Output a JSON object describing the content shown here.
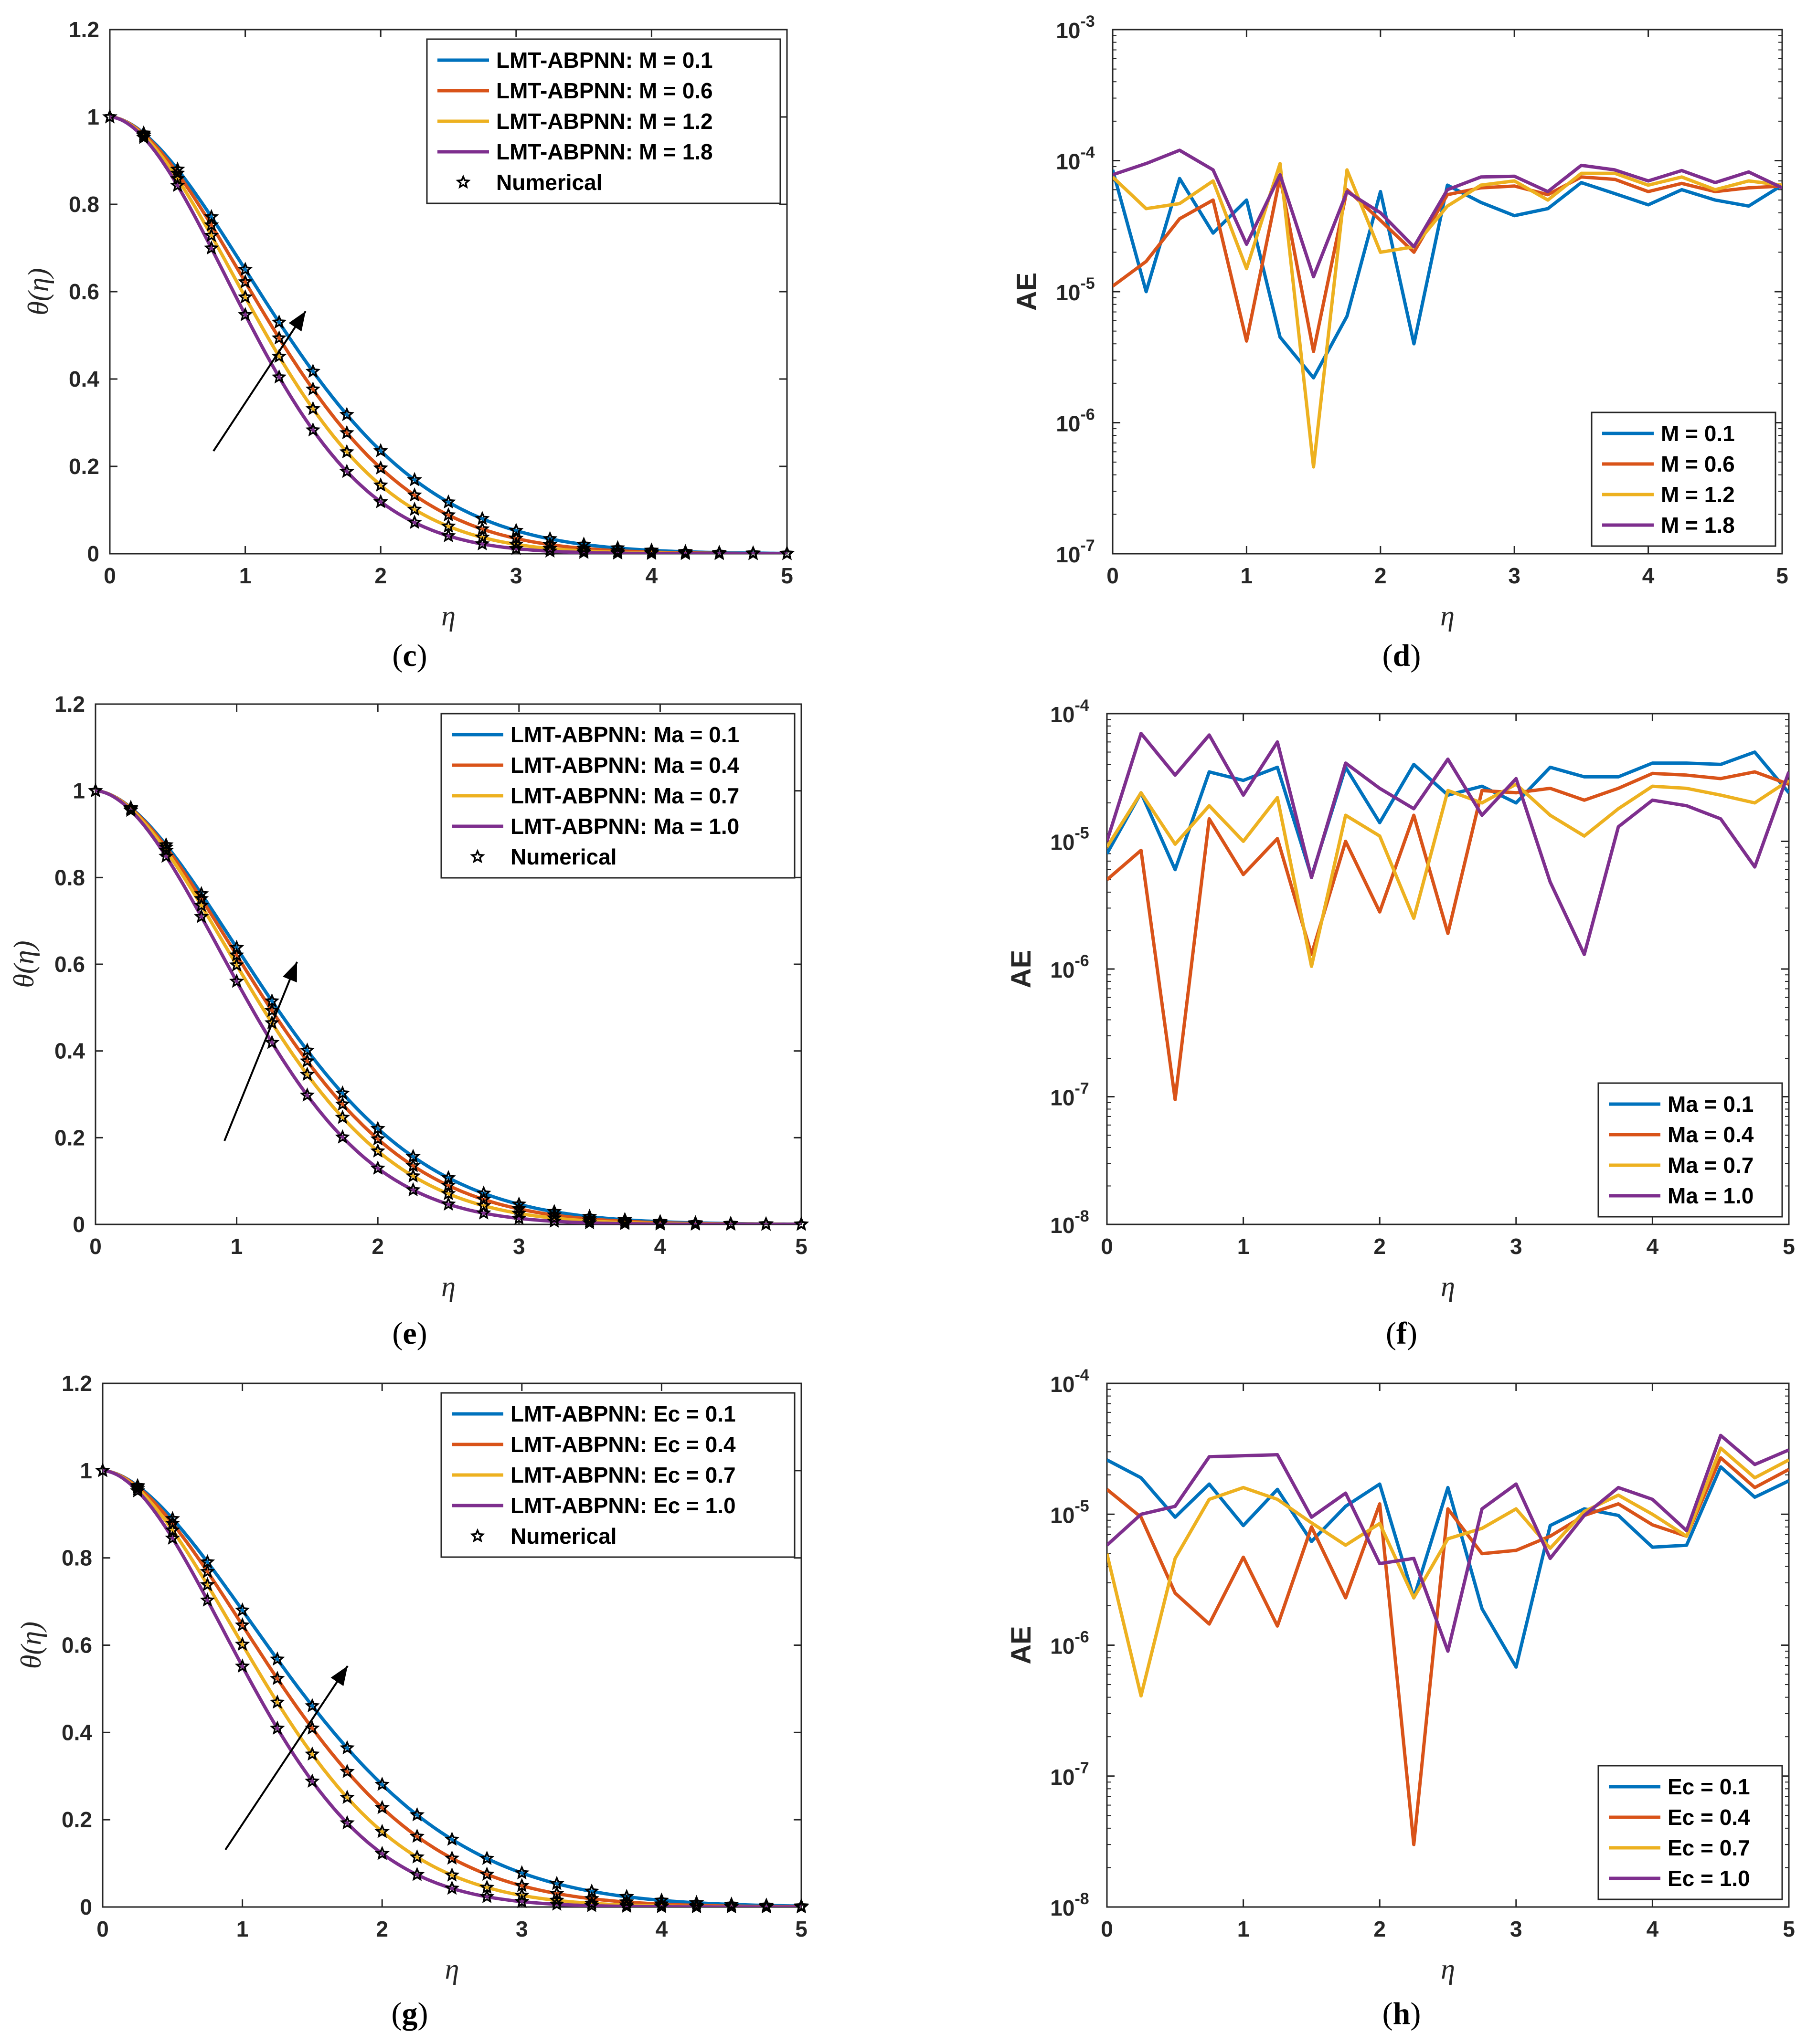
{
  "colors": {
    "blue": "#0072BD",
    "orange": "#D95319",
    "yellow": "#EDB120",
    "purple": "#7E2F8E",
    "axis": "#262626"
  },
  "chart_data": [
    {
      "type": "line",
      "caption": "c",
      "ylabel": "θ(η)",
      "xlabel": "η",
      "ylim": [
        0,
        1.2
      ],
      "xlim": [
        0,
        5
      ],
      "yscale": "linear",
      "legend_location": "top-right",
      "arrow": true,
      "series": [
        {
          "name": "LMT-ABPNN: M = 0.1",
          "color_key": "blue",
          "k": 1.62,
          "n": 1.75
        },
        {
          "name": "LMT-ABPNN: M = 0.6",
          "color_key": "orange",
          "k": 1.52,
          "n": 1.78
        },
        {
          "name": "LMT-ABPNN: M = 1.2",
          "color_key": "yellow",
          "k": 1.42,
          "n": 1.8
        },
        {
          "name": "LMT-ABPNN: M = 1.8",
          "color_key": "purple",
          "k": 1.32,
          "n": 1.82
        }
      ],
      "marker_label": "Numerical"
    },
    {
      "type": "line",
      "caption": "d",
      "ylabel": "AE",
      "xlabel": "η",
      "yscale": "log",
      "ylim_exp": [
        -7,
        -3
      ],
      "xlim": [
        0,
        5
      ],
      "legend_location": "bottom-right",
      "x": [
        0,
        0.25,
        0.5,
        0.75,
        1,
        1.25,
        1.5,
        1.75,
        2,
        2.25,
        2.5,
        2.75,
        3,
        3.25,
        3.5,
        3.75,
        4,
        4.25,
        4.5,
        4.75,
        5
      ],
      "series": [
        {
          "name": "M = 0.1",
          "color_key": "blue",
          "values": [
            8.5e-05,
            1e-05,
            7.3e-05,
            2.8e-05,
            5e-05,
            4.5e-06,
            2.2e-06,
            6.5e-06,
            5.8e-05,
            4e-06,
            6.5e-05,
            4.8e-05,
            3.8e-05,
            4.3e-05,
            6.8e-05,
            5.6e-05,
            4.6e-05,
            6e-05,
            5e-05,
            4.5e-05,
            6.5e-05
          ]
        },
        {
          "name": "M = 0.6",
          "color_key": "orange",
          "values": [
            1.1e-05,
            1.7e-05,
            3.6e-05,
            5e-05,
            4.2e-06,
            7.5e-05,
            3.5e-06,
            6e-05,
            3.5e-05,
            2e-05,
            5.5e-05,
            6.2e-05,
            6.4e-05,
            5.5e-05,
            7.5e-05,
            7.2e-05,
            5.8e-05,
            6.7e-05,
            5.8e-05,
            6.2e-05,
            6.4e-05
          ]
        },
        {
          "name": "M = 1.2",
          "color_key": "yellow",
          "values": [
            7.5e-05,
            4.3e-05,
            4.7e-05,
            7e-05,
            1.5e-05,
            9.5e-05,
            4.6e-07,
            8.5e-05,
            2e-05,
            2.2e-05,
            4.5e-05,
            6.5e-05,
            7e-05,
            5e-05,
            8e-05,
            8e-05,
            6.5e-05,
            7.5e-05,
            6e-05,
            7e-05,
            6.5e-05
          ]
        },
        {
          "name": "M = 1.8",
          "color_key": "purple",
          "values": [
            7.8e-05,
            9.5e-05,
            0.00012,
            8.5e-05,
            2.3e-05,
            7.8e-05,
            1.3e-05,
            5.8e-05,
            4e-05,
            2.2e-05,
            6e-05,
            7.5e-05,
            7.6e-05,
            5.8e-05,
            9.2e-05,
            8.5e-05,
            7e-05,
            8.4e-05,
            6.8e-05,
            8.2e-05,
            6.2e-05
          ]
        }
      ]
    },
    {
      "type": "line",
      "caption": "e",
      "ylabel": "θ(η)",
      "xlabel": "η",
      "ylim": [
        0,
        1.2
      ],
      "xlim": [
        0,
        5
      ],
      "yscale": "linear",
      "legend_location": "top-right",
      "arrow": true,
      "series": [
        {
          "name": "LMT-ABPNN: Ma = 0.1",
          "color_key": "blue",
          "k": 1.58,
          "n": 1.75
        },
        {
          "name": "LMT-ABPNN: Ma = 0.4",
          "color_key": "orange",
          "k": 1.52,
          "n": 1.77
        },
        {
          "name": "LMT-ABPNN: Ma = 0.7",
          "color_key": "yellow",
          "k": 1.45,
          "n": 1.79
        },
        {
          "name": "LMT-ABPNN: Ma = 1.0",
          "color_key": "purple",
          "k": 1.35,
          "n": 1.82
        }
      ],
      "marker_label": "Numerical"
    },
    {
      "type": "line",
      "caption": "f",
      "ylabel": "AE",
      "xlabel": "η",
      "yscale": "log",
      "ylim_exp": [
        -8,
        -4
      ],
      "xlim": [
        0,
        5
      ],
      "legend_location": "bottom-right",
      "x": [
        0,
        0.25,
        0.5,
        0.75,
        1,
        1.25,
        1.5,
        1.75,
        2,
        2.25,
        2.5,
        2.75,
        3,
        3.25,
        3.5,
        3.75,
        4,
        4.25,
        4.5,
        4.75,
        5
      ],
      "series": [
        {
          "name": "Ma = 0.1",
          "color_key": "blue",
          "values": [
            8e-06,
            2.4e-05,
            6e-06,
            3.5e-05,
            3e-05,
            3.8e-05,
            5.3e-06,
            3.8e-05,
            1.4e-05,
            4e-05,
            2.3e-05,
            2.7e-05,
            2e-05,
            3.8e-05,
            3.2e-05,
            3.2e-05,
            4.1e-05,
            4.1e-05,
            4e-05,
            5e-05,
            2.4e-05
          ]
        },
        {
          "name": "Ma = 0.4",
          "color_key": "orange",
          "values": [
            5e-06,
            8.5e-06,
            9.5e-08,
            1.5e-05,
            5.5e-06,
            1.05e-05,
            1.3e-06,
            1e-05,
            2.8e-06,
            1.6e-05,
            1.9e-06,
            2.5e-05,
            2.4e-05,
            2.6e-05,
            2.1e-05,
            2.6e-05,
            3.4e-05,
            3.3e-05,
            3.1e-05,
            3.5e-05,
            2.8e-05
          ]
        },
        {
          "name": "Ma = 0.7",
          "color_key": "yellow",
          "values": [
            9e-06,
            2.4e-05,
            9.5e-06,
            1.9e-05,
            1e-05,
            2.2e-05,
            1.05e-06,
            1.6e-05,
            1.1e-05,
            2.5e-06,
            2.5e-05,
            2e-05,
            2.8e-05,
            1.6e-05,
            1.1e-05,
            1.8e-05,
            2.7e-05,
            2.6e-05,
            2.3e-05,
            2e-05,
            3e-05
          ]
        },
        {
          "name": "Ma = 1.0",
          "color_key": "purple",
          "values": [
            1e-05,
            7e-05,
            3.3e-05,
            6.8e-05,
            2.3e-05,
            6e-05,
            5.2e-06,
            4.1e-05,
            2.6e-05,
            1.8e-05,
            4.4e-05,
            1.6e-05,
            3.1e-05,
            4.8e-06,
            1.3e-06,
            1.3e-05,
            2.1e-05,
            1.9e-05,
            1.5e-05,
            6.3e-06,
            3.5e-05
          ]
        }
      ]
    },
    {
      "type": "line",
      "caption": "g",
      "ylabel": "θ(η)",
      "xlabel": "η",
      "ylim": [
        0,
        1.2
      ],
      "xlim": [
        0,
        5
      ],
      "yscale": "linear",
      "legend_location": "top-right",
      "arrow": true,
      "series": [
        {
          "name": "LMT-ABPNN: Ec = 0.1",
          "color_key": "blue",
          "k": 1.74,
          "n": 1.72
        },
        {
          "name": "LMT-ABPNN: Ec = 0.4",
          "color_key": "orange",
          "k": 1.6,
          "n": 1.76
        },
        {
          "name": "LMT-ABPNN: Ec = 0.7",
          "color_key": "yellow",
          "k": 1.46,
          "n": 1.79
        },
        {
          "name": "LMT-ABPNN: Ec = 1.0",
          "color_key": "purple",
          "k": 1.33,
          "n": 1.82
        }
      ],
      "marker_label": "Numerical"
    },
    {
      "type": "line",
      "caption": "h",
      "ylabel": "AE",
      "xlabel": "η",
      "yscale": "log",
      "ylim_exp": [
        -8,
        -4
      ],
      "xlim": [
        0,
        5
      ],
      "legend_location": "bottom-right",
      "x": [
        0,
        0.25,
        0.5,
        0.75,
        1,
        1.25,
        1.5,
        1.75,
        2,
        2.25,
        2.5,
        2.75,
        3,
        3.25,
        3.5,
        3.75,
        4,
        4.25,
        4.5,
        4.75,
        5
      ],
      "series": [
        {
          "name": "Ec = 0.1",
          "color_key": "blue",
          "values": [
            2.6e-05,
            1.9e-05,
            9.5e-06,
            1.7e-05,
            8.2e-06,
            1.55e-05,
            6.2e-06,
            1.15e-05,
            1.7e-05,
            2.3e-06,
            1.6e-05,
            1.9e-06,
            6.8e-07,
            8.2e-06,
            1.1e-05,
            9.8e-06,
            5.6e-06,
            5.8e-06,
            2.3e-05,
            1.35e-05,
            1.8e-05
          ]
        },
        {
          "name": "Ec = 0.4",
          "color_key": "orange",
          "values": [
            1.55e-05,
            9.5e-06,
            2.5e-06,
            1.45e-06,
            4.7e-06,
            1.4e-06,
            8e-06,
            2.3e-06,
            1.2e-05,
            3e-08,
            1.1e-05,
            5e-06,
            5.3e-06,
            6.8e-06,
            9.8e-06,
            1.2e-05,
            8.3e-06,
            6.8e-06,
            2.7e-05,
            1.6e-05,
            2.2e-05
          ]
        },
        {
          "name": "Ec = 0.7",
          "color_key": "yellow",
          "values": [
            5e-06,
            4.1e-07,
            4.6e-06,
            1.3e-05,
            1.6e-05,
            1.3e-05,
            8.6e-06,
            5.8e-06,
            8.5e-06,
            2.3e-06,
            6.5e-06,
            7.8e-06,
            1.1e-05,
            5.5e-06,
            1.05e-05,
            1.4e-05,
            1e-05,
            6.8e-06,
            3.2e-05,
            1.9e-05,
            2.6e-05
          ]
        },
        {
          "name": "Ec = 1.0",
          "color_key": "purple",
          "values": [
            5.8e-06,
            1e-05,
            1.15e-05,
            2.75e-05,
            2.8e-05,
            2.85e-05,
            9.5e-06,
            1.45e-05,
            4.2e-06,
            4.6e-06,
            9e-07,
            1.1e-05,
            1.7e-05,
            4.6e-06,
            9.8e-06,
            1.6e-05,
            1.3e-05,
            7.5e-06,
            4e-05,
            2.4e-05,
            3.1e-05
          ]
        }
      ]
    }
  ]
}
